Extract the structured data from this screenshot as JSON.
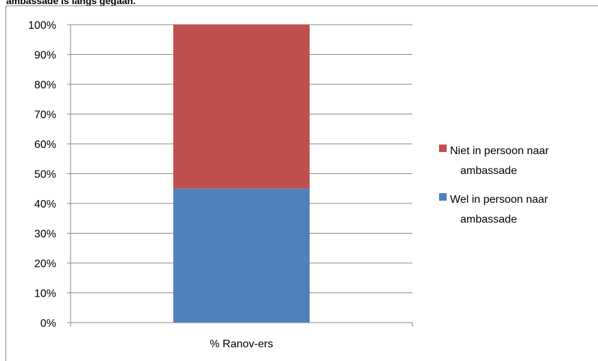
{
  "caption": "ambassade is langs gegaan.",
  "chart_data": {
    "type": "bar",
    "stacked": true,
    "percent": true,
    "categories": [
      "% Ranov-ers"
    ],
    "series": [
      {
        "name": "Wel in persoon naar ambassade",
        "values": [
          45
        ],
        "color": "#4f81bd"
      },
      {
        "name": "Niet in persoon naar ambassade",
        "values": [
          55
        ],
        "color": "#c0504d"
      }
    ],
    "ylim": [
      0,
      100
    ],
    "yticks": [
      "0%",
      "10%",
      "20%",
      "30%",
      "40%",
      "50%",
      "60%",
      "70%",
      "80%",
      "90%",
      "100%"
    ],
    "grid": true,
    "legend_position": "right",
    "legend": [
      {
        "line1": "Niet in persoon naar",
        "line2": "ambassade",
        "color": "#c0504d"
      },
      {
        "line1": "Wel in persoon naar",
        "line2": "ambassade",
        "color": "#4f81bd"
      }
    ]
  }
}
